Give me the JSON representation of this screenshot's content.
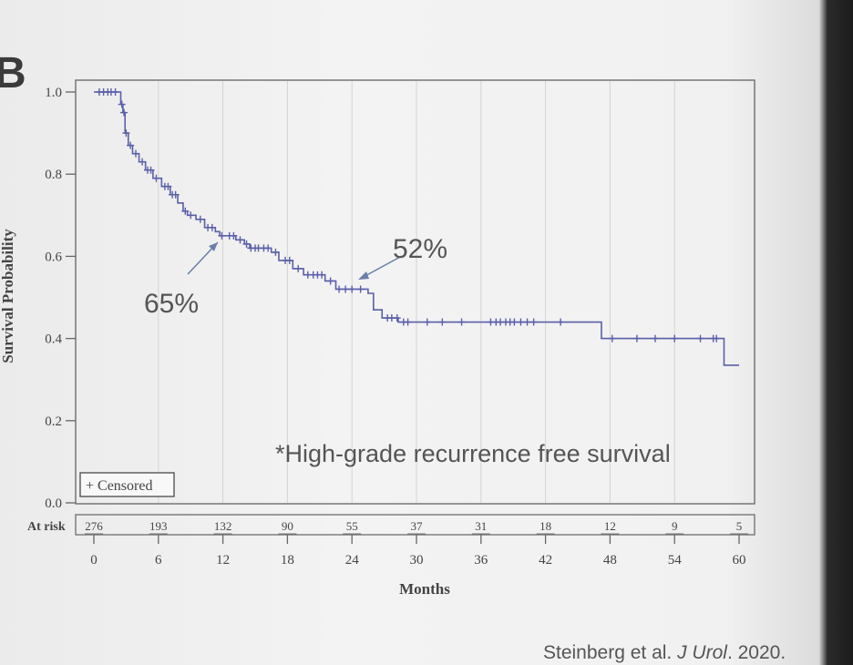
{
  "panel_label": "B",
  "citation": {
    "authors": "Steinberg et al. ",
    "journal": "J Urol",
    "rest": ". 2020."
  },
  "chart_data": {
    "type": "line",
    "title": "",
    "xlabel": "Months",
    "ylabel": "Survival Probability",
    "xlim": [
      0,
      60
    ],
    "ylim": [
      0,
      1
    ],
    "x_ticks": [
      0,
      6,
      12,
      18,
      24,
      30,
      36,
      42,
      48,
      54,
      60
    ],
    "y_ticks": [
      "0.0",
      "0.2",
      "0.4",
      "0.6",
      "0.8",
      "1.0"
    ],
    "grid": "vertical",
    "legend": {
      "label": "+ Censored",
      "position": "bottom-left"
    },
    "at_risk": {
      "label": "At risk",
      "times": [
        0,
        6,
        12,
        18,
        24,
        30,
        36,
        42,
        48,
        54,
        60
      ],
      "values": [
        "276",
        "193",
        "132",
        "90",
        "55",
        "37",
        "31",
        "18",
        "12",
        "9",
        "5"
      ]
    },
    "annotations": [
      {
        "text": "65%",
        "x": 12,
        "y": 0.65
      },
      {
        "text": "52%",
        "x": 24,
        "y": 0.52
      },
      {
        "text": "*High-grade recurrence free survival"
      }
    ],
    "series": [
      {
        "color": "#5a5fa8",
        "step_points": [
          [
            0,
            1.0
          ],
          [
            2.3,
            1.0
          ],
          [
            2.5,
            0.97
          ],
          [
            2.7,
            0.95
          ],
          [
            2.9,
            0.9
          ],
          [
            3.2,
            0.87
          ],
          [
            3.6,
            0.85
          ],
          [
            4.2,
            0.83
          ],
          [
            4.8,
            0.81
          ],
          [
            5.5,
            0.79
          ],
          [
            6.3,
            0.77
          ],
          [
            7.1,
            0.75
          ],
          [
            7.8,
            0.73
          ],
          [
            8.3,
            0.71
          ],
          [
            8.7,
            0.7
          ],
          [
            9.5,
            0.69
          ],
          [
            10.3,
            0.67
          ],
          [
            11.3,
            0.66
          ],
          [
            11.7,
            0.65
          ],
          [
            13.2,
            0.64
          ],
          [
            14.0,
            0.63
          ],
          [
            14.5,
            0.62
          ],
          [
            16.5,
            0.61
          ],
          [
            17.2,
            0.59
          ],
          [
            18.5,
            0.57
          ],
          [
            19.5,
            0.555
          ],
          [
            21.5,
            0.54
          ],
          [
            22.5,
            0.52
          ],
          [
            25.5,
            0.51
          ],
          [
            26.0,
            0.47
          ],
          [
            26.8,
            0.45
          ],
          [
            28.3,
            0.44
          ],
          [
            47.2,
            0.44
          ],
          [
            47.2,
            0.4
          ],
          [
            58.6,
            0.4
          ],
          [
            58.6,
            0.335
          ],
          [
            60.0,
            0.335
          ]
        ],
        "censored": [
          0.5,
          0.9,
          1.3,
          1.6,
          2.0,
          2.6,
          2.8,
          3.0,
          3.4,
          3.9,
          4.5,
          5.0,
          5.3,
          5.8,
          6.6,
          6.9,
          7.3,
          7.6,
          8.5,
          9.0,
          9.9,
          10.6,
          11.0,
          11.9,
          12.6,
          13.0,
          13.6,
          14.2,
          14.6,
          15.0,
          15.3,
          15.8,
          16.2,
          16.9,
          17.8,
          18.2,
          19.0,
          19.9,
          20.4,
          20.8,
          21.2,
          22.0,
          22.8,
          23.4,
          24.0,
          24.8,
          27.3,
          27.7,
          28.2,
          28.8,
          29.2,
          31.0,
          32.4,
          34.2,
          36.9,
          37.4,
          37.8,
          38.3,
          38.7,
          39.1,
          39.7,
          40.3,
          40.9,
          43.4,
          48.2,
          50.5,
          52.2,
          54.0,
          56.4,
          57.6,
          57.9
        ]
      }
    ]
  }
}
